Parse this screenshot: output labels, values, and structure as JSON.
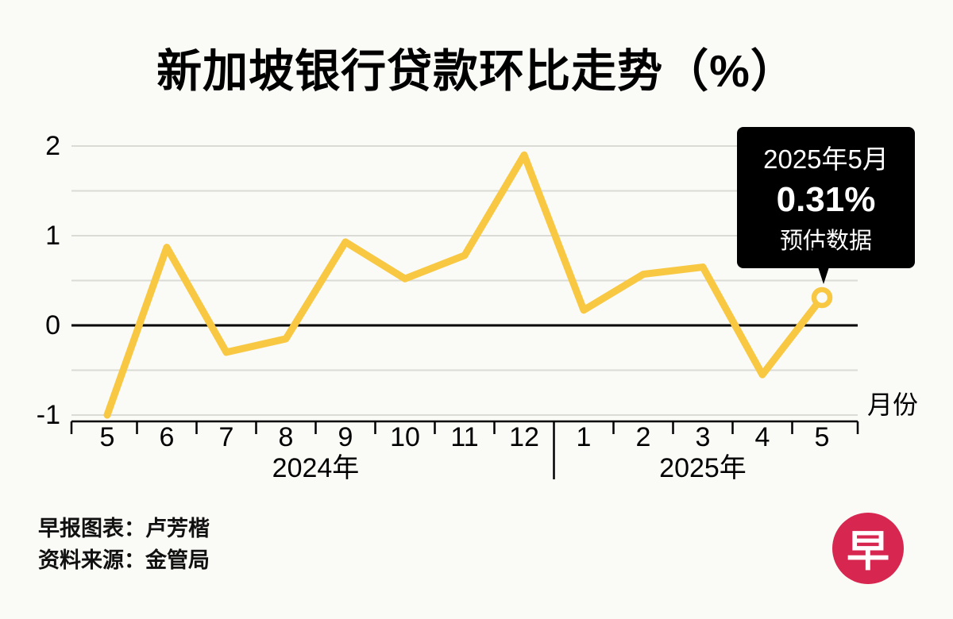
{
  "title": "新加坡银行贷款环比走势（%）",
  "chart_data": {
    "type": "line",
    "title": "新加坡银行贷款环比走势（%）",
    "x_labels": [
      "5",
      "6",
      "7",
      "8",
      "9",
      "10",
      "11",
      "12",
      "1",
      "2",
      "3",
      "4",
      "5"
    ],
    "values": [
      -1.0,
      0.87,
      -0.3,
      -0.15,
      0.93,
      0.52,
      0.78,
      1.9,
      0.17,
      0.57,
      0.65,
      -0.55,
      0.31
    ],
    "ylim": [
      -1,
      2
    ],
    "y_ticks": [
      2,
      1,
      0,
      -1
    ],
    "gridline_step": 0.5,
    "grid": "on",
    "year_groups": [
      {
        "label": "2024年",
        "from": 0,
        "to": 7
      },
      {
        "label": "2025年",
        "from": 8,
        "to": 12
      }
    ],
    "xlabel": "月份",
    "ylabel": "",
    "line_color": "#F8C842",
    "grid_color": "#DBDBD5",
    "zero_line_color": "#000000",
    "last_point_open": true,
    "last_point_value": "0.31%"
  },
  "callout": {
    "line1": "2025年5月",
    "line2": "0.31%",
    "line3": "预估数据",
    "bg": "#000000",
    "text_color": "#FFFFFF"
  },
  "footer": {
    "credit": "早报图表：卢芳楷",
    "source": "资料来源：金管局"
  },
  "logo": {
    "char": "早",
    "bg": "#D7264F"
  }
}
